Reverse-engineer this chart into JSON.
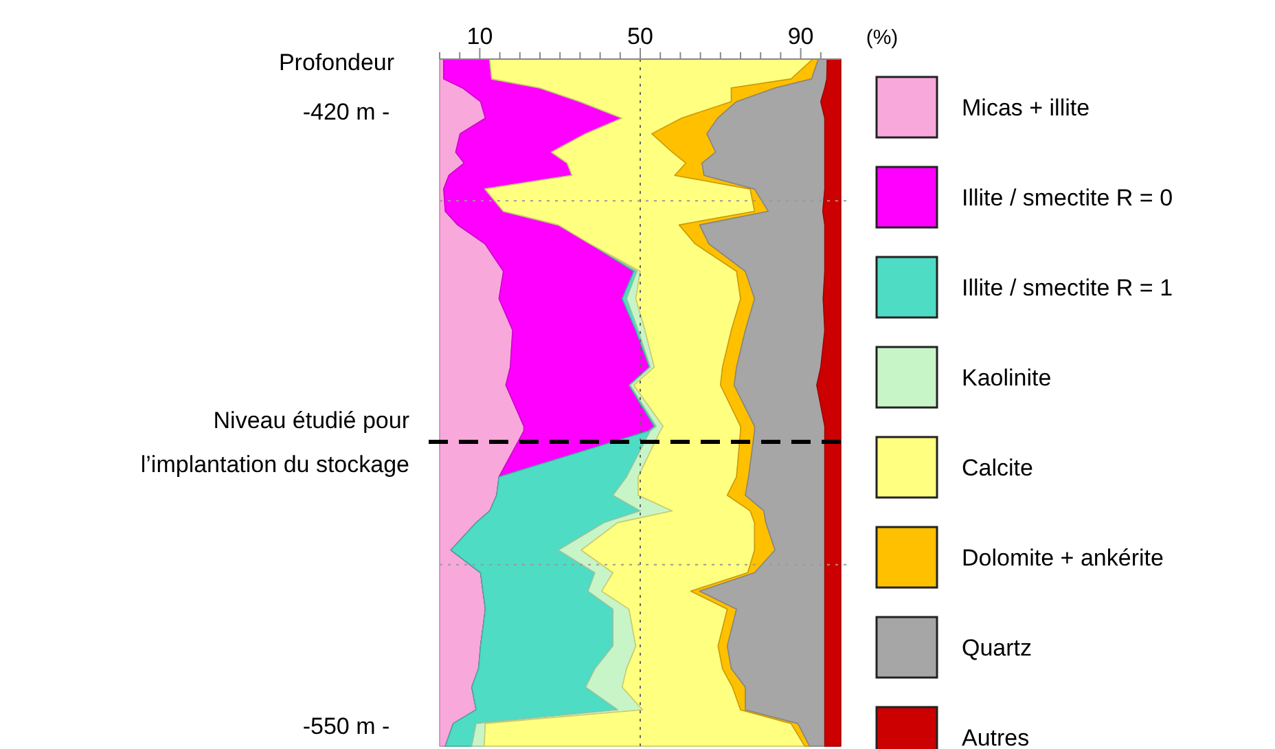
{
  "chart_data": {
    "type": "area",
    "stacked": true,
    "orientation": "horizontal",
    "xlabel": "(%)",
    "ylabel": "Profondeur",
    "legend": "right",
    "xlim": [
      0,
      100
    ],
    "xticks": [
      {
        "value": 0,
        "label": null
      },
      {
        "value": 5,
        "label": null
      },
      {
        "value": 10,
        "label": "10"
      },
      {
        "value": 15,
        "label": null
      },
      {
        "value": 20,
        "label": null
      },
      {
        "value": 25,
        "label": null
      },
      {
        "value": 30,
        "label": null
      },
      {
        "value": 35,
        "label": null
      },
      {
        "value": 40,
        "label": null
      },
      {
        "value": 45,
        "label": null
      },
      {
        "value": 50,
        "label": "50"
      },
      {
        "value": 55,
        "label": null
      },
      {
        "value": 60,
        "label": null
      },
      {
        "value": 65,
        "label": null
      },
      {
        "value": 70,
        "label": null
      },
      {
        "value": 75,
        "label": null
      },
      {
        "value": 80,
        "label": null
      },
      {
        "value": 85,
        "label": null
      },
      {
        "value": 90,
        "label": "90"
      },
      {
        "value": 95,
        "label": null
      }
    ],
    "ylim": [
      -555,
      -409
    ],
    "yticks": [
      {
        "value": -420,
        "label": "-420 m -"
      },
      {
        "value": -550,
        "label": "-550 m -"
      }
    ],
    "x": [
      -409,
      -413.2,
      -415.1,
      -418,
      -421.5,
      -424.8,
      -428.7,
      -431,
      -433.6,
      -436.5,
      -441.2,
      -444.1,
      -448.1,
      -453.9,
      -459.7,
      -466.4,
      -474.2,
      -478,
      -486.7,
      -487.7,
      -497.4,
      -501.3,
      -504.6,
      -507.1,
      -512.9,
      -517.7,
      -521.6,
      -525.4,
      -533.2,
      -538,
      -541.9,
      -546.7,
      -549.6,
      -554.4
    ],
    "series": [
      {
        "name": "Micas + illite",
        "color": "#f9a8dc",
        "values": [
          1,
          1,
          5.7,
          10.2,
          11.4,
          5.1,
          4,
          6.1,
          2.3,
          1,
          1.4,
          4.5,
          11.3,
          15.9,
          14.8,
          18.2,
          17.6,
          16.5,
          21,
          21,
          14.8,
          14.2,
          12.5,
          9.1,
          2.8,
          10.2,
          10.8,
          11.4,
          10.2,
          9.7,
          8,
          9.1,
          3.4,
          1.4
        ]
      },
      {
        "name": "Illite / smectite R = 0",
        "color": "#ff00ff",
        "values": [
          11.5,
          12,
          19.3,
          24.8,
          34.1,
          31.3,
          23.9,
          25.7,
          30.7,
          10.3,
          14.5,
          25.1,
          26.2,
          32.5,
          30.7,
          30.7,
          34.7,
          30.7,
          32.5,
          31,
          0,
          0,
          0,
          0,
          0,
          0,
          0,
          0,
          0,
          0,
          0,
          0,
          0,
          0
        ]
      },
      {
        "name": "Illite / smectite R = 1",
        "color": "#4fdcc4",
        "values": [
          0,
          0,
          0,
          0,
          0,
          0,
          0,
          0,
          0,
          0,
          0,
          0,
          0,
          0.8,
          1.1,
          0.6,
          0.2,
          0.3,
          0.5,
          0.5,
          31.8,
          29,
          37.5,
          31.9,
          26.8,
          28.5,
          26.2,
          31.8,
          33,
          29,
          28.4,
          35.3,
          5.7,
          6.6
        ]
      },
      {
        "name": "Kaolinite",
        "color": "#c8f5c8",
        "values": [
          0,
          0,
          0,
          0,
          0,
          0,
          0,
          0,
          0,
          0,
          0,
          0,
          0,
          0.8,
          2.3,
          1.7,
          1,
          0.9,
          1.7,
          2.5,
          2.9,
          6.3,
          8,
          3.4,
          5.7,
          4.5,
          3.4,
          4,
          5.7,
          7.9,
          9.1,
          6.2,
          2.3,
          3.1
        ]
      },
      {
        "name": "Calcite",
        "color": "#ffff80",
        "values": [
          80.5,
          74.6,
          47.7,
          37.7,
          14.8,
          16.5,
          30.1,
          29.6,
          25.6,
          66.1,
          62.6,
          30.1,
          26.2,
          24,
          26.1,
          21.5,
          17,
          21.6,
          19.3,
          20,
          24.5,
          22.2,
          19.4,
          34.1,
          43.2,
          33.6,
          22.2,
          24.5,
          20.5,
          23.9,
          27.5,
          24.4,
          76.2,
          79.9
        ]
      },
      {
        "name": "Dolomite + ankérite",
        "color": "#ffc000",
        "values": [
          1.4,
          5.1,
          10.9,
          1.3,
          9,
          13.7,
          10.8,
          4,
          7.3,
          1.1,
          3.4,
          5.1,
          3.4,
          2.2,
          3.5,
          3.5,
          3.5,
          3.4,
          3.5,
          3.5,
          3,
          4.5,
          3.4,
          2.8,
          5.1,
          1.7,
          2.2,
          2.3,
          2.3,
          2.2,
          3.2,
          1.2,
          1.7,
          1.2
        ]
      },
      {
        "name": "Quartz",
        "color": "#a6a6a6",
        "values": [
          2.2,
          3.8,
          12.4,
          21,
          26.7,
          29.4,
          27.2,
          30.6,
          30.1,
          17.5,
          13.6,
          31.2,
          28.9,
          19.8,
          17.1,
          19.8,
          21,
          20.6,
          17.5,
          17.5,
          19,
          19.8,
          15.2,
          14.7,
          12.4,
          17.5,
          31.2,
          22,
          24.3,
          23.3,
          19.8,
          19.8,
          6.7,
          3.8
        ]
      },
      {
        "name": "Autres",
        "color": "#cc0000",
        "values": [
          3.4,
          3.5,
          4,
          5,
          4,
          4,
          4,
          4,
          4,
          4,
          4.5,
          4,
          4,
          4,
          4.4,
          4,
          5,
          6,
          4,
          4,
          4,
          4,
          4,
          4,
          4,
          4,
          4,
          4,
          4,
          4,
          4,
          4,
          4,
          4
        ]
      }
    ],
    "ref_lines": [
      {
        "axis": "x",
        "value": 50,
        "line_style": "dotted",
        "color": "#666666"
      },
      {
        "axis": "y",
        "value": -439,
        "line_style": "dotted",
        "color": "#999999"
      },
      {
        "axis": "y",
        "value": -516,
        "line_style": "dotted",
        "color": "#999999"
      },
      {
        "axis": "y",
        "value": -490,
        "line_style": "dashed",
        "color": "#000000",
        "label": "Niveau étudié pour l’implantation du stockage"
      }
    ]
  }
}
